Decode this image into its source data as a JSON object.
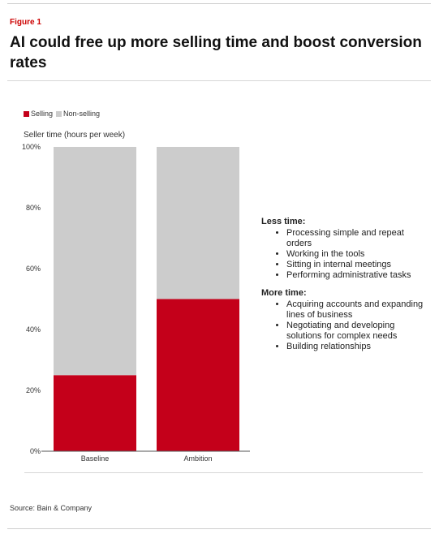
{
  "figure_label": "Figure 1",
  "title": "AI could free up more selling time and boost conversion rates",
  "legend": [
    {
      "label": "Selling",
      "color": "#c4001a"
    },
    {
      "label": "Non-selling",
      "color": "#cccccc"
    }
  ],
  "notes": {
    "less_time": {
      "heading": "Less time:",
      "items": [
        "Processing simple and repeat orders",
        "Working in the tools",
        "Sitting in internal meetings",
        "Performing administrative tasks"
      ]
    },
    "more_time": {
      "heading": "More time:",
      "items": [
        "Acquiring accounts and expanding lines of business",
        "Negotiating and developing solutions for complex needs",
        "Building relationships"
      ]
    }
  },
  "source": "Source: Bain & Company",
  "chart_data": {
    "type": "bar",
    "stacked": true,
    "categories": [
      "Baseline",
      "Ambition"
    ],
    "series": [
      {
        "name": "Selling",
        "values": [
          25,
          50
        ],
        "color": "#c4001a"
      },
      {
        "name": "Non-selling",
        "values": [
          75,
          50
        ],
        "color": "#cccccc"
      }
    ],
    "ylabel": "Seller time (hours per week)",
    "ylim": [
      0,
      100
    ],
    "yticks": [
      "0%",
      "20%",
      "40%",
      "60%",
      "80%",
      "100%"
    ],
    "grid": false,
    "legend_position": "top-left"
  }
}
